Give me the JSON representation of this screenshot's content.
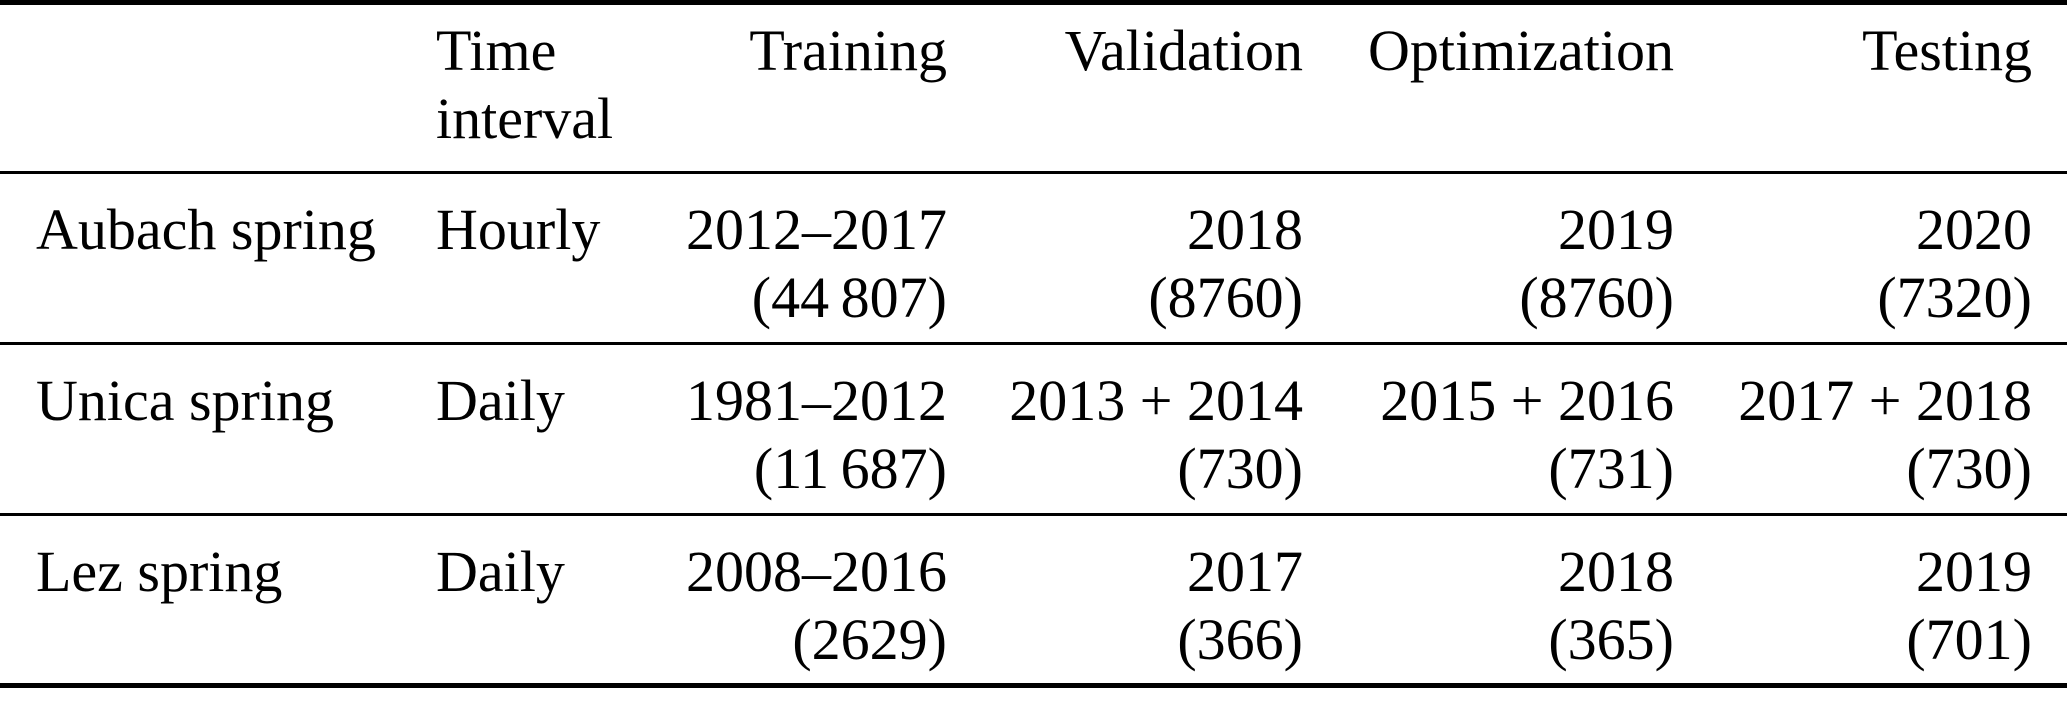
{
  "table": {
    "headers": {
      "name": "",
      "interval": "Time interval",
      "training": "Training",
      "validation": "Validation",
      "optimization": "Optimization",
      "testing": "Testing"
    },
    "rows": [
      {
        "name": "Aubach spring",
        "interval": "Hourly",
        "training_period": "2012–2017",
        "training_count": "(44 807)",
        "validation_period": "2018",
        "validation_count": "(8760)",
        "optimization_period": "2019",
        "optimization_count": "(8760)",
        "testing_period": "2020",
        "testing_count": "(7320)"
      },
      {
        "name": "Unica spring",
        "interval": "Daily",
        "training_period": "1981–2012",
        "training_count": "(11 687)",
        "validation_period": "2013 + 2014",
        "validation_count": "(730)",
        "optimization_period": "2015 + 2016",
        "optimization_count": "(731)",
        "testing_period": "2017 + 2018",
        "testing_count": "(730)"
      },
      {
        "name": "Lez spring",
        "interval": "Daily",
        "training_period": "2008–2016",
        "training_count": "(2629)",
        "validation_period": "2017",
        "validation_count": "(366)",
        "optimization_period": "2018",
        "optimization_count": "(365)",
        "testing_period": "2019",
        "testing_count": "(701)"
      }
    ]
  }
}
